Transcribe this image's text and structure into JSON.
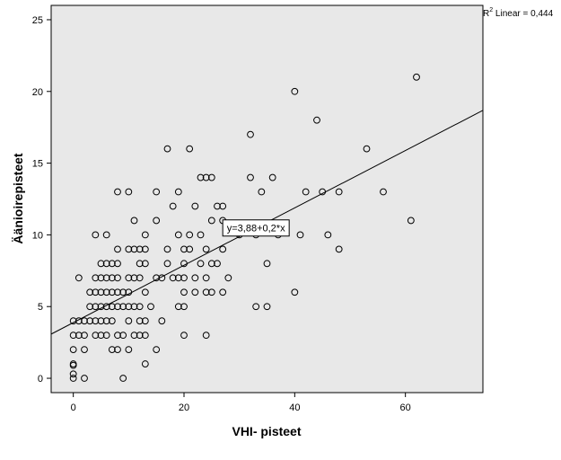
{
  "chart_data": {
    "type": "scatter",
    "title": "",
    "xlabel": "VHI- pisteet",
    "ylabel": "Äänioirepisteet",
    "xlim": [
      -4,
      74
    ],
    "ylim": [
      -1,
      26
    ],
    "x_ticks": [
      0,
      20,
      40,
      60
    ],
    "y_ticks": [
      0,
      5,
      10,
      15,
      20,
      25
    ],
    "grid": false,
    "background": "#e8e8e8",
    "fit_line": {
      "intercept": 3.88,
      "slope": 0.2,
      "label": "y=3,88+0,2*x"
    },
    "r2_label": {
      "prefix": "R",
      "sup": "2",
      "suffix": " Linear = 0,444"
    },
    "points": [
      [
        0,
        0
      ],
      [
        0,
        0.3
      ],
      [
        0,
        0.9
      ],
      [
        0,
        1
      ],
      [
        0,
        2
      ],
      [
        0,
        3
      ],
      [
        0,
        4
      ],
      [
        1,
        3
      ],
      [
        1,
        4
      ],
      [
        1,
        7
      ],
      [
        2,
        0
      ],
      [
        2,
        2
      ],
      [
        2,
        3
      ],
      [
        2,
        4
      ],
      [
        3,
        4
      ],
      [
        3,
        5
      ],
      [
        3,
        6
      ],
      [
        4,
        3
      ],
      [
        4,
        4
      ],
      [
        4,
        5
      ],
      [
        4,
        6
      ],
      [
        4,
        7
      ],
      [
        4,
        10
      ],
      [
        5,
        3
      ],
      [
        5,
        4
      ],
      [
        5,
        5
      ],
      [
        5,
        6
      ],
      [
        5,
        7
      ],
      [
        5,
        8
      ],
      [
        6,
        3
      ],
      [
        6,
        4
      ],
      [
        6,
        5
      ],
      [
        6,
        6
      ],
      [
        6,
        7
      ],
      [
        6,
        8
      ],
      [
        6,
        10
      ],
      [
        7,
        2
      ],
      [
        7,
        4
      ],
      [
        7,
        5
      ],
      [
        7,
        6
      ],
      [
        7,
        7
      ],
      [
        7,
        8
      ],
      [
        8,
        2
      ],
      [
        8,
        3
      ],
      [
        8,
        5
      ],
      [
        8,
        6
      ],
      [
        8,
        7
      ],
      [
        8,
        8
      ],
      [
        8,
        9
      ],
      [
        8,
        13
      ],
      [
        9,
        0
      ],
      [
        9,
        3
      ],
      [
        9,
        5
      ],
      [
        9,
        6
      ],
      [
        10,
        2
      ],
      [
        10,
        4
      ],
      [
        10,
        5
      ],
      [
        10,
        6
      ],
      [
        10,
        7
      ],
      [
        10,
        9
      ],
      [
        10,
        13
      ],
      [
        11,
        3
      ],
      [
        11,
        5
      ],
      [
        11,
        7
      ],
      [
        11,
        9
      ],
      [
        11,
        11
      ],
      [
        12,
        3
      ],
      [
        12,
        4
      ],
      [
        12,
        5
      ],
      [
        12,
        7
      ],
      [
        12,
        8
      ],
      [
        12,
        9
      ],
      [
        13,
        1
      ],
      [
        13,
        3
      ],
      [
        13,
        4
      ],
      [
        13,
        6
      ],
      [
        13,
        8
      ],
      [
        13,
        9
      ],
      [
        13,
        10
      ],
      [
        14,
        5
      ],
      [
        15,
        2
      ],
      [
        15,
        7
      ],
      [
        15,
        11
      ],
      [
        15,
        13
      ],
      [
        16,
        4
      ],
      [
        16,
        7
      ],
      [
        17,
        8
      ],
      [
        17,
        9
      ],
      [
        17,
        16
      ],
      [
        18,
        7
      ],
      [
        18,
        12
      ],
      [
        19,
        5
      ],
      [
        19,
        7
      ],
      [
        19,
        10
      ],
      [
        19,
        13
      ],
      [
        20,
        3
      ],
      [
        20,
        5
      ],
      [
        20,
        6
      ],
      [
        20,
        7
      ],
      [
        20,
        8
      ],
      [
        20,
        9
      ],
      [
        21,
        9
      ],
      [
        21,
        10
      ],
      [
        21,
        16
      ],
      [
        22,
        6
      ],
      [
        22,
        7
      ],
      [
        22,
        12
      ],
      [
        23,
        8
      ],
      [
        23,
        10
      ],
      [
        23,
        14
      ],
      [
        24,
        3
      ],
      [
        24,
        6
      ],
      [
        24,
        7
      ],
      [
        24,
        9
      ],
      [
        24,
        14
      ],
      [
        25,
        6
      ],
      [
        25,
        8
      ],
      [
        25,
        11
      ],
      [
        25,
        14
      ],
      [
        26,
        8
      ],
      [
        26,
        12
      ],
      [
        27,
        6
      ],
      [
        27,
        9
      ],
      [
        27,
        11
      ],
      [
        27,
        12
      ],
      [
        28,
        7
      ],
      [
        30,
        10
      ],
      [
        32,
        14
      ],
      [
        32,
        17
      ],
      [
        33,
        5
      ],
      [
        33,
        10
      ],
      [
        34,
        13
      ],
      [
        35,
        5
      ],
      [
        35,
        8
      ],
      [
        36,
        14
      ],
      [
        37,
        10
      ],
      [
        40,
        6
      ],
      [
        40,
        20
      ],
      [
        41,
        10
      ],
      [
        42,
        13
      ],
      [
        44,
        18
      ],
      [
        45,
        13
      ],
      [
        46,
        10
      ],
      [
        48,
        9
      ],
      [
        48,
        13
      ],
      [
        53,
        16
      ],
      [
        56,
        13
      ],
      [
        61,
        11
      ],
      [
        62,
        21
      ]
    ]
  }
}
